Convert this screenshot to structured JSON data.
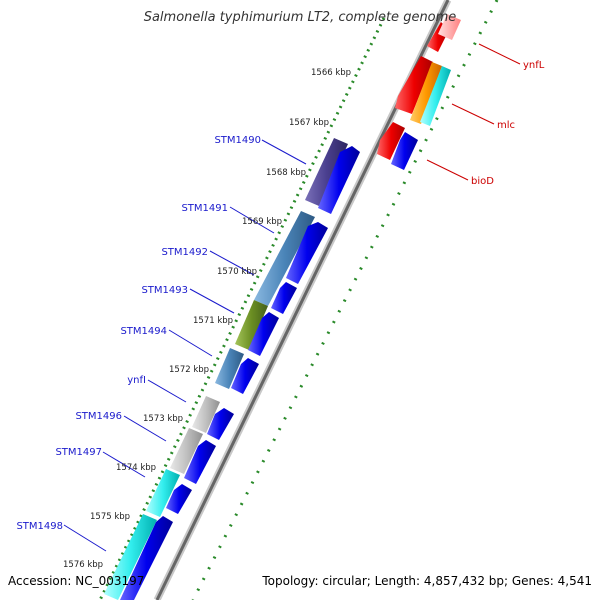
{
  "map": {
    "title": "Salmonella typhimurium LT2, complete genome",
    "accession": "Accession: NC_003197",
    "topology": "Topology: circular; Length: 4,857,432 bp; Genes: 4,541",
    "colors": {
      "backbone": "#555555",
      "tick_dots": "#2a8a2a",
      "feature_forward": "#0000ee",
      "feature_reverse": "#ee0000",
      "label_blue": "#1a1acc",
      "label_red": "#cc0000"
    },
    "kbp_ticks": [
      "1566 kbp",
      "1567 kbp",
      "1568 kbp",
      "1569 kbp",
      "1570 kbp",
      "1571 kbp",
      "1572 kbp",
      "1573 kbp",
      "1574 kbp",
      "1575 kbp",
      "1576 kbp"
    ],
    "gene_labels_left": [
      "STM1490",
      "STM1491",
      "STM1492",
      "STM1493",
      "STM1494",
      "ynfI",
      "STM1496",
      "STM1497",
      "STM1498"
    ],
    "gene_labels_right": [
      "ynfL",
      "mlc",
      "bioD"
    ]
  }
}
